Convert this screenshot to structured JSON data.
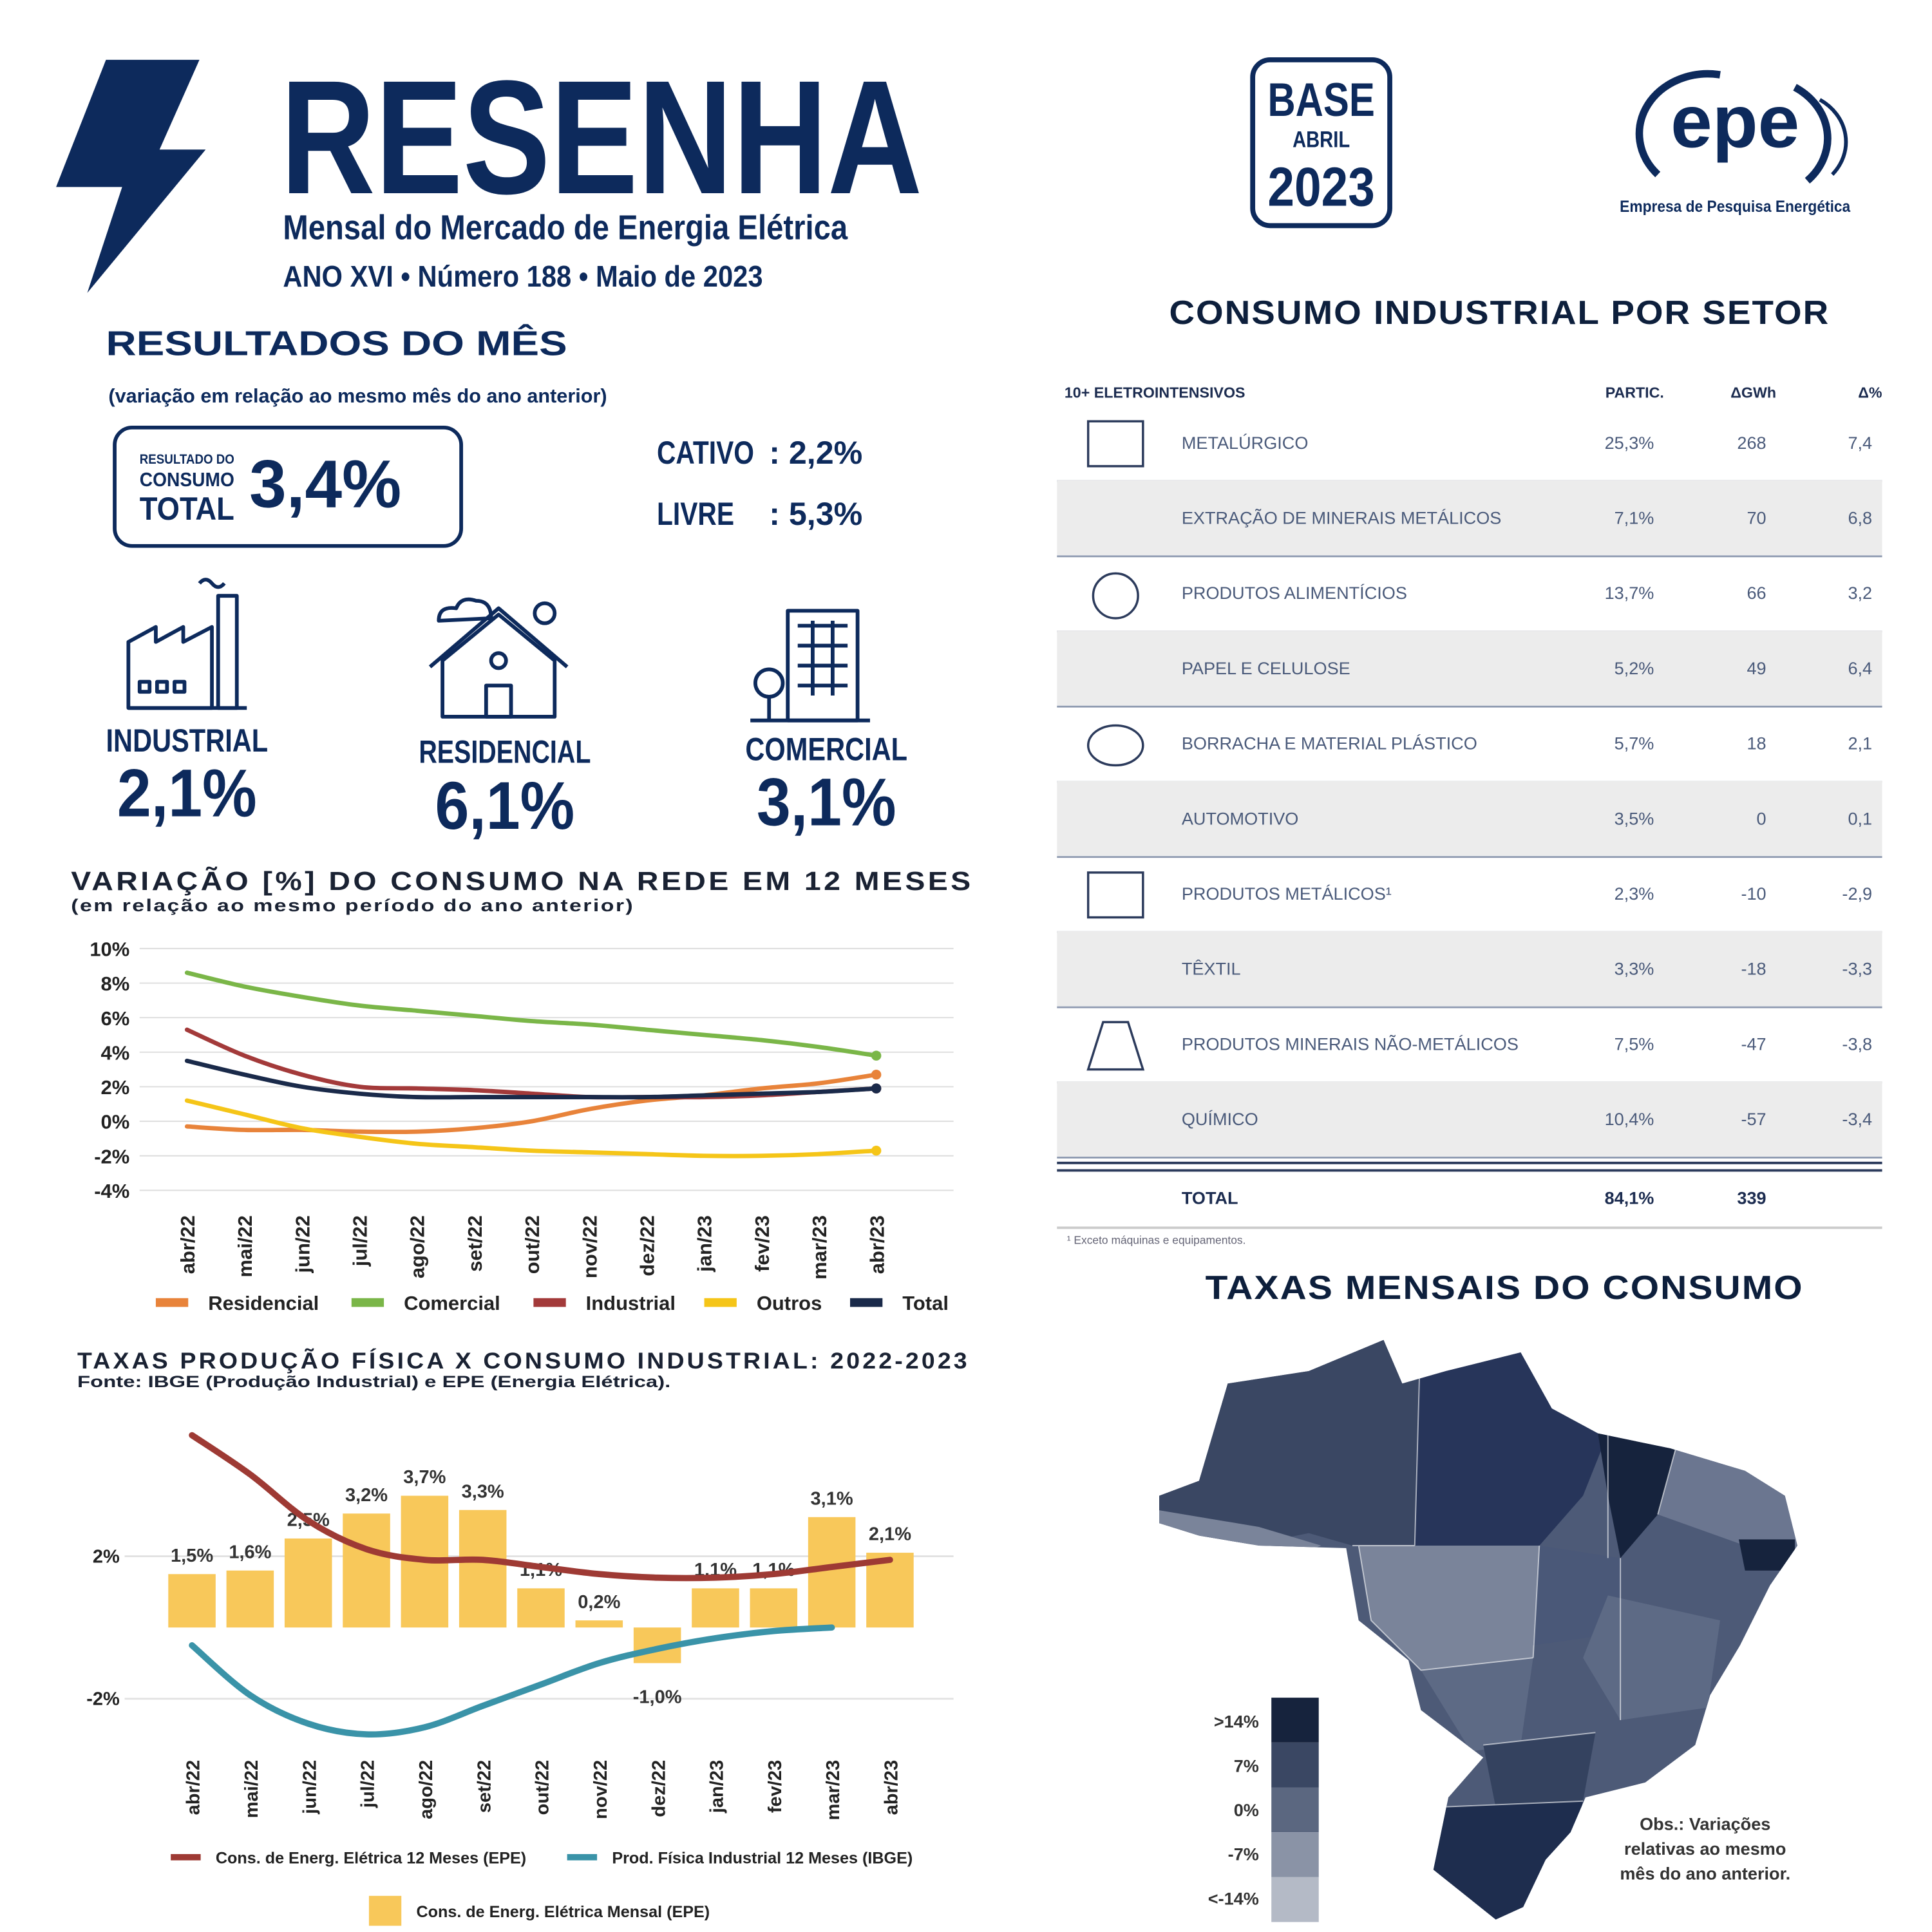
{
  "header": {
    "title": "RESENHA",
    "subtitle": "Mensal do Mercado de Energia Elétrica",
    "edition": "ANO XVI • Número 188 • Maio de 2023",
    "badge": [
      "BASE",
      "ABRIL",
      "2023"
    ],
    "logo": "epe",
    "logo_caption": "Empresa de Pesquisa Energética"
  },
  "results": {
    "title": "RESULTADOS DO MÊS",
    "note": "(variação em relação ao mesmo mês do ano anterior)",
    "total_label": [
      "RESULTADO DO",
      "CONSUMO",
      "TOTAL"
    ],
    "total": "3,4%",
    "markets": [
      {
        "label": "CATIVO",
        "value": ": 2,2%"
      },
      {
        "label": "LIVRE",
        "value": ": 5,3%"
      }
    ],
    "sectors": [
      {
        "label": "INDUSTRIAL",
        "value": "2,1%"
      },
      {
        "label": "RESIDENCIAL",
        "value": "6,1%"
      },
      {
        "label": "COMERCIAL",
        "value": "3,1%"
      }
    ]
  },
  "chart_data": [
    {
      "type": "line",
      "title": "VARIAÇÃO [%] DO CONSUMO NA REDE EM 12 MESES",
      "subtitle": "(em relação ao mesmo período do ano anterior)",
      "categories": [
        "abr/22",
        "mai/22",
        "jun/22",
        "jul/22",
        "ago/22",
        "set/22",
        "out/22",
        "nov/22",
        "dez/22",
        "jan/23",
        "fev/23",
        "mar/23",
        "abr/23"
      ],
      "ylim": [
        -4,
        10
      ],
      "yticks": [
        {
          "value": 10,
          "label": "10%"
        },
        {
          "value": 8,
          "label": "8%"
        },
        {
          "value": 6,
          "label": "6%"
        },
        {
          "value": 4,
          "label": "4%"
        },
        {
          "value": 2,
          "label": "2%"
        },
        {
          "value": 0,
          "label": "0%"
        },
        {
          "value": -2,
          "label": "-2%"
        },
        {
          "value": -4,
          "label": "-4%"
        }
      ],
      "grid": true,
      "legend": "bottom",
      "series": [
        {
          "name": "Residencial",
          "color": "#e8833a",
          "values": [
            -0.3,
            -0.5,
            -0.5,
            -0.6,
            -0.6,
            -0.4,
            0,
            0.7,
            1.2,
            1.5,
            1.9,
            2.2,
            2.7
          ]
        },
        {
          "name": "Comercial",
          "color": "#7ab648",
          "values": [
            8.6,
            7.8,
            7.2,
            6.7,
            6.4,
            6.1,
            5.8,
            5.6,
            5.3,
            5.0,
            4.7,
            4.3,
            3.8
          ]
        },
        {
          "name": "Industrial",
          "color": "#a33a3a",
          "values": [
            5.3,
            3.8,
            2.7,
            2.0,
            1.9,
            1.8,
            1.6,
            1.4,
            1.4,
            1.4,
            1.5,
            1.7,
            1.9
          ]
        },
        {
          "name": "Outros",
          "color": "#f5c518",
          "values": [
            1.2,
            0.4,
            -0.4,
            -0.9,
            -1.3,
            -1.5,
            -1.7,
            -1.8,
            -1.9,
            -2.0,
            -2.0,
            -1.9,
            -1.7
          ]
        },
        {
          "name": "Total",
          "color": "#1a2a4a",
          "values": [
            3.5,
            2.7,
            2.0,
            1.6,
            1.4,
            1.4,
            1.4,
            1.4,
            1.4,
            1.5,
            1.6,
            1.7,
            1.9
          ]
        }
      ]
    },
    {
      "type": "bar",
      "title": "TAXAS PRODUÇÃO FÍSICA X CONSUMO INDUSTRIAL: 2022-2023",
      "subtitle": "Fonte: IBGE (Produção Industrial) e EPE (Energia Elétrica).",
      "categories": [
        "abr/22",
        "mai/22",
        "jun/22",
        "jul/22",
        "ago/22",
        "set/22",
        "out/22",
        "nov/22",
        "dez/22",
        "jan/23",
        "fev/23",
        "mar/23",
        "abr/23"
      ],
      "ylim": [
        -3.3,
        5.8
      ],
      "yticks": [
        {
          "value": 2,
          "label": "2%"
        },
        {
          "value": -2,
          "label": "-2%"
        }
      ],
      "grid": true,
      "legend": "bottom",
      "series": [
        {
          "name": "Cons. de Energ. Elétrica 12 Meses (EPE)",
          "type": "line",
          "color": "#9e3a34",
          "values": [
            5.4,
            4.3,
            3.0,
            2.2,
            1.9,
            1.9,
            1.7,
            1.5,
            1.4,
            1.4,
            1.5,
            1.7,
            1.9
          ]
        },
        {
          "name": "Prod. Física Industrial 12 Meses (IBGE)",
          "type": "line",
          "color": "#3a93a8",
          "values": [
            -0.5,
            -1.9,
            -2.7,
            -3.0,
            -2.8,
            -2.2,
            -1.6,
            -1.0,
            -0.6,
            -0.3,
            -0.1,
            0.0,
            null
          ]
        },
        {
          "name": "Cons. de Energ. Elétrica Mensal (EPE)",
          "type": "bar",
          "color": "#f8c85a",
          "values": [
            1.5,
            1.6,
            2.5,
            3.2,
            3.7,
            3.3,
            1.1,
            0.2,
            -1.0,
            1.1,
            1.1,
            3.1,
            2.1
          ],
          "value_labels": [
            "1,5%",
            "1,6%",
            "2,5%",
            "3,2%",
            "3,7%",
            "3,3%",
            "1,1%",
            "0,2%",
            "-1,0%",
            "1,1%",
            "1,1%",
            "3,1%",
            "2,1%"
          ]
        }
      ]
    }
  ],
  "table": {
    "title": "CONSUMO INDUSTRIAL POR SETOR",
    "columns": [
      "10+ ELETROINTENSIVOS",
      "PARTIC.",
      "ΔGWh",
      "Δ%"
    ],
    "rows": [
      [
        "METALÚRGICO",
        "25,3%",
        "268",
        "7,4"
      ],
      [
        "EXTRAÇÃO DE MINERAIS METÁLICOS",
        "7,1%",
        "70",
        "6,8"
      ],
      [
        "PRODUTOS ALIMENTÍCIOS",
        "13,7%",
        "66",
        "3,2"
      ],
      [
        "PAPEL E CELULOSE",
        "5,2%",
        "49",
        "6,4"
      ],
      [
        "BORRACHA E MATERIAL PLÁSTICO",
        "5,7%",
        "18",
        "2,1"
      ],
      [
        "AUTOMOTIVO",
        "3,5%",
        "0",
        "0,1"
      ],
      [
        "PRODUTOS METÁLICOS¹",
        "2,3%",
        "-10",
        "-2,9"
      ],
      [
        "TÊXTIL",
        "3,3%",
        "-18",
        "-3,3"
      ],
      [
        "PRODUTOS MINERAIS NÃO-METÁLICOS",
        "7,5%",
        "-47",
        "-3,8"
      ],
      [
        "QUÍMICO",
        "10,4%",
        "-57",
        "-3,4"
      ]
    ],
    "total": [
      "TOTAL",
      "84,1%",
      "339"
    ],
    "footnote": "¹ Exceto máquinas e equipamentos."
  },
  "map": {
    "title": "TAXAS MENSAIS DO CONSUMO",
    "legend": [
      ">14%",
      "7%",
      "0%",
      "-7%",
      "<-14%"
    ],
    "note": [
      "Obs.: Variações",
      "relativas ao mesmo",
      "mês do ano anterior."
    ]
  }
}
